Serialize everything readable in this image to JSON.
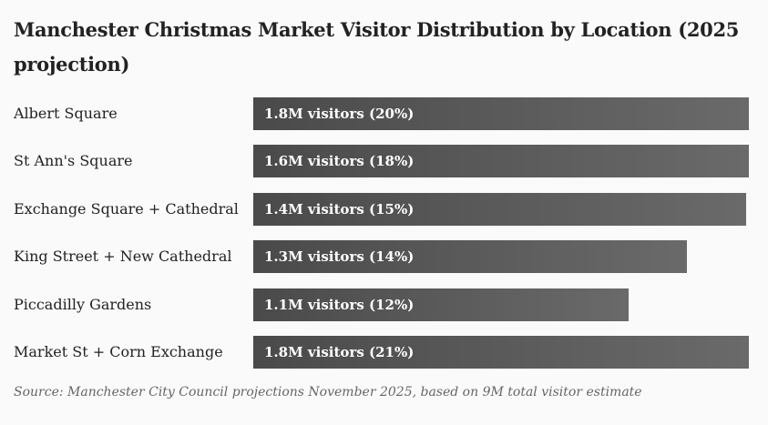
{
  "chart_data": {
    "type": "bar",
    "orientation": "horizontal",
    "title": "Manchester Christmas Market Visitor Distribution by Location (2025 projection)",
    "categories": [
      "Albert Square",
      "St Ann's Square",
      "Exchange Square + Cathedral",
      "King Street + New Cathedral",
      "Piccadilly Gardens",
      "Market St + Corn Exchange"
    ],
    "values_millions": [
      1.8,
      1.6,
      1.4,
      1.3,
      1.1,
      1.8
    ],
    "percent": [
      20,
      18,
      15,
      14,
      12,
      21
    ],
    "bar_fill_fraction": [
      1.0,
      1.0,
      0.994,
      0.875,
      0.757,
      1.0
    ],
    "data_labels": [
      "1.8M visitors (20%)",
      "1.6M visitors (18%)",
      "1.4M visitors (15%)",
      "1.3M visitors (14%)",
      "1.1M visitors (12%)",
      "1.8M visitors (21%)"
    ],
    "xlabel": "",
    "ylabel": "",
    "grid": false,
    "legend": "none",
    "source": "Source: Manchester City Council projections November 2025, based on 9M total visitor estimate"
  },
  "colors": {
    "bar_start": "#4a4a4a",
    "bar_end": "#6a6a6a",
    "background": "#fafafa"
  }
}
